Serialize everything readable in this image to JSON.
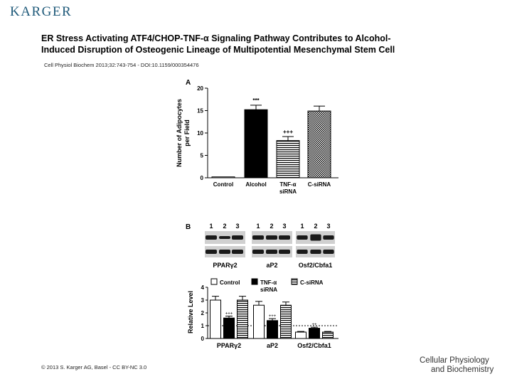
{
  "header": {
    "publisher_logo": "KARGER"
  },
  "title_lines": [
    "ER Stress Activating ATF4/CHOP-TNF-α Signaling Pathway Contributes to Alcohol-",
    "Induced Disruption of Osteogenic Lineage of Multipotential Mesenchymal Stem Cell"
  ],
  "citation": "Cell Physiol Biochem 2013;32:743-754 - DOI:10.1159/000354476",
  "footer": {
    "copyright": "© 2013 S. Karger AG, Basel - CC BY-NC 3.0",
    "journal_line1": "Cellular Physiology",
    "journal_line2": "and Biochemistry"
  },
  "panel_a": {
    "label": "A",
    "ylabel_line1": "Number of Adipocytes",
    "ylabel_line2": "per Field",
    "categories": [
      "Control",
      "Alcohol",
      "TNF-α siRNA",
      "C-siRNA"
    ],
    "category_lines": [
      [
        "Control"
      ],
      [
        "Alcohol"
      ],
      [
        "TNF-α",
        "siRNA"
      ],
      [
        "C-siRNA"
      ]
    ],
    "values": [
      0.2,
      15.2,
      8.3,
      14.9
    ],
    "errors": [
      0,
      1.0,
      0.9,
      1.1
    ],
    "annotations": [
      "",
      "***",
      "+++",
      ""
    ],
    "fills": [
      "white",
      "black",
      "hstripes",
      "checker"
    ]
  },
  "panel_b": {
    "label": "B",
    "lane_numbers": [
      "1",
      "2",
      "3"
    ],
    "blot_labels": [
      "PPARγ2",
      "aP2",
      "Osf2/Cbfa1"
    ],
    "legend": [
      "Control",
      "TNF-α siRNA",
      "C-siRNA"
    ],
    "legend_lines": [
      [
        "Control"
      ],
      [
        "TNF-α",
        "siRNA"
      ],
      [
        "C-siRNA"
      ]
    ],
    "ylabel": "Relative Level",
    "groups": [
      "PPARγ2",
      "aP2",
      "Osf2/Cbfa1"
    ],
    "annotations": [
      "+++",
      "+++",
      "++"
    ]
  },
  "chart_data": [
    {
      "type": "bar",
      "title": "",
      "panel": "A",
      "categories": [
        "Control",
        "Alcohol",
        "TNF-α siRNA",
        "C-siRNA"
      ],
      "values": [
        0.2,
        15.2,
        8.3,
        14.9
      ],
      "errors": [
        0,
        1.0,
        0.9,
        1.1
      ],
      "xlabel": "",
      "ylabel": "Number of Adipocytes per Field",
      "ylim": [
        0,
        20
      ],
      "yticks": [
        0,
        5,
        10,
        15,
        20
      ],
      "annotations": [
        "",
        "***",
        "+++",
        ""
      ]
    },
    {
      "type": "bar",
      "title": "",
      "panel": "B",
      "categories": [
        "PPARγ2",
        "aP2",
        "Osf2/Cbfa1"
      ],
      "series": [
        {
          "name": "Control",
          "values": [
            3.0,
            2.6,
            0.5
          ],
          "errors": [
            0.3,
            0.3,
            0.05
          ]
        },
        {
          "name": "TNF-α siRNA",
          "values": [
            1.6,
            1.4,
            0.8
          ],
          "errors": [
            0.15,
            0.15,
            0.08
          ]
        },
        {
          "name": "C-siRNA",
          "values": [
            3.0,
            2.6,
            0.5
          ],
          "errors": [
            0.3,
            0.25,
            0.05
          ]
        }
      ],
      "xlabel": "",
      "ylabel": "Relative Level",
      "ylim": [
        0,
        4
      ],
      "yticks": [
        0,
        1,
        2,
        3,
        4
      ],
      "reference_line": 1,
      "legend_position": "top"
    }
  ]
}
